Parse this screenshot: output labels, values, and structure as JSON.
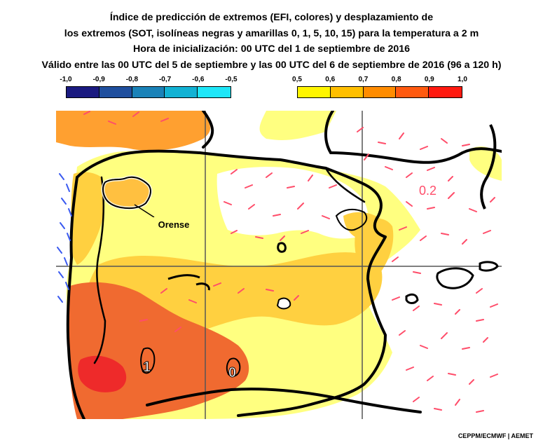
{
  "title": {
    "line1": "Índice de predicción de extremos (EFI, colores) y desplazamiento de",
    "line2": "los extremos (SOT, isolíneas negras y amarillas 0, 1, 5, 10, 15) para la temperatura a 2 m",
    "line3": "Hora de inicialización: 00 UTC del 1 de septiembre de 2016",
    "line4": "Válido entre las 00 UTC del 5 de septiembre y las 00 UTC del 6 de septiembre de 2016 (96 a 120 h)"
  },
  "legend_cold": {
    "ticks": [
      "-1,0",
      "-0,9",
      "-0,8",
      "-0,7",
      "-0,6",
      "-0,5"
    ],
    "colors": [
      "#1a1a80",
      "#1f4f9e",
      "#1a82b8",
      "#12b2d4",
      "#1ee6f8"
    ]
  },
  "legend_warm": {
    "ticks": [
      "0,5",
      "0,6",
      "0,7",
      "0,8",
      "0,9",
      "1,0"
    ],
    "colors": [
      "#fff500",
      "#ffbf00",
      "#ff8c00",
      "#ff5a10",
      "#ff1a10"
    ]
  },
  "map": {
    "place_label": "Orense",
    "contour_labels": [
      "0.2",
      "1",
      "0"
    ],
    "colors": {
      "sea": "#ffffff",
      "efi_05": "#ffff80",
      "efi_06": "#ffd040",
      "efi_07": "#ffa030",
      "efi_08": "#f06a30",
      "efi_09": "#ee2a2a",
      "contour_positive": "#ff4d6a",
      "contour_negative": "#3a5af0"
    }
  },
  "credit": "CEPPM/ECMWF | AEMET"
}
